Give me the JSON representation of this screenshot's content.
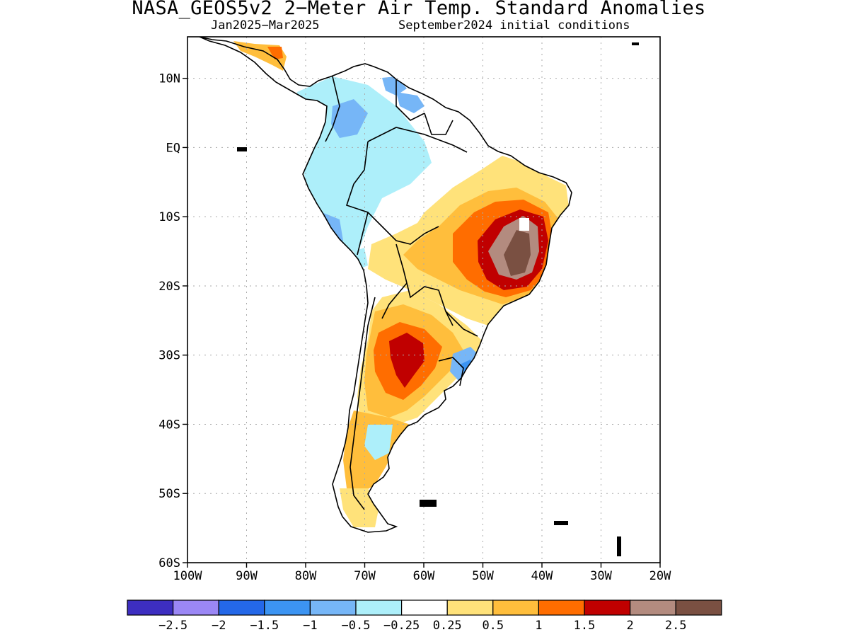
{
  "header": {
    "title": "NASA_GEOS5v2 2−Meter Air Temp. Standard Anomalies",
    "period": "Jan2025−Mar2025",
    "init": "September2024 initial conditions"
  },
  "map": {
    "lon_range": [
      -100,
      -20
    ],
    "lat_range": [
      -60,
      16
    ],
    "lat_labels": [
      "10N",
      "EQ",
      "10S",
      "20S",
      "30S",
      "40S",
      "50S",
      "60S"
    ],
    "lat_values": [
      10,
      0,
      -10,
      -20,
      -30,
      -40,
      -50,
      -60
    ],
    "lon_labels": [
      "100W",
      "90W",
      "80W",
      "70W",
      "60W",
      "50W",
      "40W",
      "30W",
      "20W"
    ],
    "lon_values": [
      -100,
      -90,
      -80,
      -70,
      -60,
      -50,
      -40,
      -30,
      -20
    ],
    "grid": "dotted",
    "land_outline": "black",
    "ocean_fill": "white"
  },
  "colorbar": {
    "colors": [
      "#3d2ec0",
      "#9b87f5",
      "#2468e8",
      "#3c94f2",
      "#76b6f7",
      "#adeffa",
      "#ffffff",
      "#ffe27a",
      "#ffbe3c",
      "#ff6d00",
      "#c00000",
      "#b38b7f",
      "#7a5042"
    ],
    "labels": [
      "−2.5",
      "−2",
      "−1.5",
      "−1",
      "−0.5",
      "−0.25",
      "0.25",
      "0.5",
      "1",
      "1.5",
      "2",
      "2.5"
    ]
  }
}
